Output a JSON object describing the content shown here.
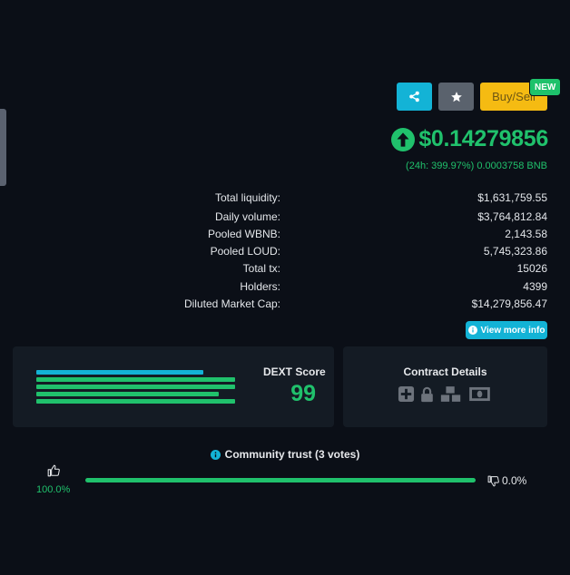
{
  "toolbar": {
    "buy_sell_label": "Buy/Sell",
    "new_badge": "NEW",
    "share_icon": "share-icon",
    "star_icon": "star-icon"
  },
  "price": {
    "value": "$0.14279856",
    "change": "(24h: 399.97%) 0.0003758 BNB",
    "direction_icon": "arrow-up-circle-icon",
    "color": "#20c16c"
  },
  "stats": [
    {
      "label": "Total liquidity:",
      "value": "$1,631,759.55"
    },
    {
      "label": "Daily volume:",
      "value": "$3,764,812.84"
    },
    {
      "label": "Pooled WBNB:",
      "value": "2,143.58"
    },
    {
      "label": "Pooled LOUD:",
      "value": "5,745,323.86"
    },
    {
      "label": "Total tx:",
      "value": "15026"
    },
    {
      "label": "Holders:",
      "value": "4399"
    },
    {
      "label": "Diluted Market Cap:",
      "value": "$14,279,856.47"
    }
  ],
  "more_info_label": "View more info",
  "dext_score": {
    "label": "DEXT Score",
    "value": "99",
    "bars": [
      {
        "fraction": 0.84,
        "color": "#13b3d6"
      },
      {
        "fraction": 1.0,
        "color": "#20c16c"
      },
      {
        "fraction": 1.0,
        "color": "#20c16c"
      },
      {
        "fraction": 0.92,
        "color": "#20c16c"
      },
      {
        "fraction": 1.0,
        "color": "#20c16c"
      }
    ]
  },
  "contract": {
    "title": "Contract Details",
    "icons": [
      "plus-square-icon",
      "lock-icon",
      "cubes-icon",
      "money-bill-icon"
    ]
  },
  "community": {
    "title": "Community trust (3 votes)",
    "up_pct": "100.0%",
    "down_pct": "0.0%",
    "up_fraction": 1.0
  }
}
